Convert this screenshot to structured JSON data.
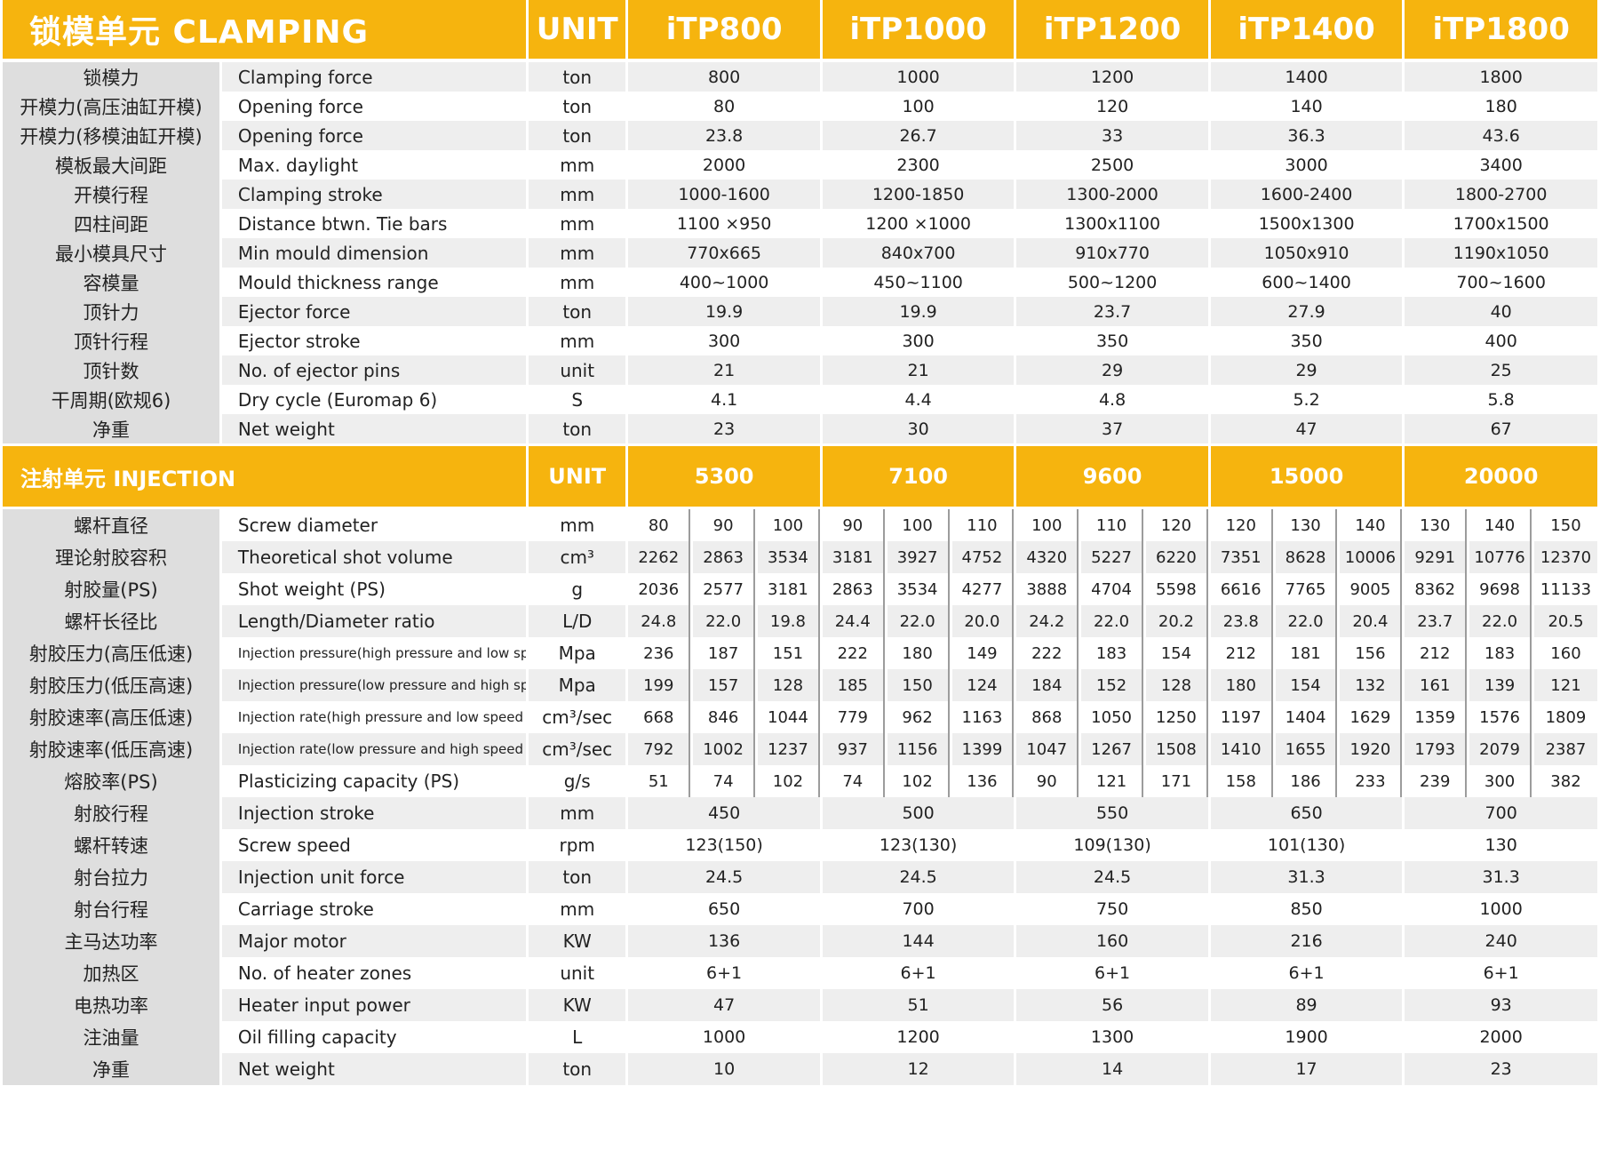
{
  "clamping": {
    "title": "锁模单元 CLAMPING",
    "unit_header": "UNIT",
    "models": [
      "iTP800",
      "iTP1000",
      "iTP1200",
      "iTP1400",
      "iTP1800"
    ],
    "rows": [
      {
        "zh": "锁模力",
        "en": "Clamping force",
        "unit": "ton",
        "values": [
          "800",
          "1000",
          "1200",
          "1400",
          "1800"
        ]
      },
      {
        "zh": "开模力(高压油缸开模)",
        "en": "Opening force",
        "unit": "ton",
        "values": [
          "80",
          "100",
          "120",
          "140",
          "180"
        ]
      },
      {
        "zh": "开模力(移模油缸开模)",
        "en": "Opening force",
        "unit": "ton",
        "values": [
          "23.8",
          "26.7",
          "33",
          "36.3",
          "43.6"
        ]
      },
      {
        "zh": "模板最大间距",
        "en": "Max. daylight",
        "unit": "mm",
        "values": [
          "2000",
          "2300",
          "2500",
          "3000",
          "3400"
        ]
      },
      {
        "zh": "开模行程",
        "en": "Clamping stroke",
        "unit": "mm",
        "values": [
          "1000-1600",
          "1200-1850",
          "1300-2000",
          "1600-2400",
          "1800-2700"
        ]
      },
      {
        "zh": "四柱间距",
        "en": "Distance btwn. Tie bars",
        "unit": "mm",
        "values": [
          "1100 ×950",
          "1200 ×1000",
          "1300x1100",
          "1500x1300",
          "1700x1500"
        ]
      },
      {
        "zh": "最小模具尺寸",
        "en": "Min mould dimension",
        "unit": "mm",
        "values": [
          "770x665",
          "840x700",
          "910x770",
          "1050x910",
          "1190x1050"
        ]
      },
      {
        "zh": "容模量",
        "en": "Mould thickness range",
        "unit": "mm",
        "values": [
          "400~1000",
          "450~1100",
          "500~1200",
          "600~1400",
          "700~1600"
        ]
      },
      {
        "zh": "顶针力",
        "en": "Ejector force",
        "unit": "ton",
        "values": [
          "19.9",
          "19.9",
          "23.7",
          "27.9",
          "40"
        ]
      },
      {
        "zh": "顶针行程",
        "en": "Ejector stroke",
        "unit": "mm",
        "values": [
          "300",
          "300",
          "350",
          "350",
          "400"
        ]
      },
      {
        "zh": "顶针数",
        "en": "No. of ejector pins",
        "unit": "unit",
        "values": [
          "21",
          "21",
          "29",
          "29",
          "25"
        ]
      },
      {
        "zh": "干周期(欧规6)",
        "en": "Dry cycle (Euromap 6)",
        "unit": "S",
        "values": [
          "4.1",
          "4.4",
          "4.8",
          "5.2",
          "5.8"
        ]
      },
      {
        "zh": "净重",
        "en": "Net weight",
        "unit": "ton",
        "values": [
          "23",
          "30",
          "37",
          "47",
          "67"
        ]
      }
    ]
  },
  "injection": {
    "title": "注射单元 INJECTION",
    "unit_header": "UNIT",
    "groups": [
      "5300",
      "7100",
      "9600",
      "15000",
      "20000"
    ],
    "sub_rows": [
      {
        "zh": "螺杆直径",
        "en": "Screw diameter",
        "unit": "mm",
        "values": [
          "80",
          "90",
          "100",
          "90",
          "100",
          "110",
          "100",
          "110",
          "120",
          "120",
          "130",
          "140",
          "130",
          "140",
          "150"
        ]
      },
      {
        "zh": "理论射胶容积",
        "en": "Theoretical shot volume",
        "unit": "cm³",
        "values": [
          "2262",
          "2863",
          "3534",
          "3181",
          "3927",
          "4752",
          "4320",
          "5227",
          "6220",
          "7351",
          "8628",
          "10006",
          "9291",
          "10776",
          "12370"
        ]
      },
      {
        "zh": "射胶量(PS)",
        "en": "Shot weight (PS)",
        "unit": "g",
        "values": [
          "2036",
          "2577",
          "3181",
          "2863",
          "3534",
          "4277",
          "3888",
          "4704",
          "5598",
          "6616",
          "7765",
          "9005",
          "8362",
          "9698",
          "11133"
        ]
      },
      {
        "zh": "螺杆长径比",
        "en": "Length/Diameter ratio",
        "unit": "L/D",
        "values": [
          "24.8",
          "22.0",
          "19.8",
          "24.4",
          "22.0",
          "20.0",
          "24.2",
          "22.0",
          "20.2",
          "23.8",
          "22.0",
          "20.4",
          "23.7",
          "22.0",
          "20.5"
        ]
      },
      {
        "zh": "射胶压力(高压低速)",
        "en": "Injection pressure(high pressure and low speed )",
        "unit": "Mpa",
        "small": true,
        "values": [
          "236",
          "187",
          "151",
          "222",
          "180",
          "149",
          "222",
          "183",
          "154",
          "212",
          "181",
          "156",
          "212",
          "183",
          "160"
        ]
      },
      {
        "zh": "射胶压力(低压高速)",
        "en": "Injection pressure(low pressure and high speed )",
        "unit": "Mpa",
        "small": true,
        "values": [
          "199",
          "157",
          "128",
          "185",
          "150",
          "124",
          "184",
          "152",
          "128",
          "180",
          "154",
          "132",
          "161",
          "139",
          "121"
        ]
      },
      {
        "zh": "射胶速率(高压低速)",
        "en": "Injection rate(high pressure and low speed )",
        "unit": "cm³/sec",
        "small": true,
        "values": [
          "668",
          "846",
          "1044",
          "779",
          "962",
          "1163",
          "868",
          "1050",
          "1250",
          "1197",
          "1404",
          "1629",
          "1359",
          "1576",
          "1809"
        ]
      },
      {
        "zh": "射胶速率(低压高速)",
        "en": "Injection rate(low pressure and high speed )",
        "unit": "cm³/sec",
        "small": true,
        "values": [
          "792",
          "1002",
          "1237",
          "937",
          "1156",
          "1399",
          "1047",
          "1267",
          "1508",
          "1410",
          "1655",
          "1920",
          "1793",
          "2079",
          "2387"
        ]
      },
      {
        "zh": "熔胶率(PS)",
        "en": "Plasticizing capacity (PS)",
        "unit": "g/s",
        "values": [
          "51",
          "74",
          "102",
          "74",
          "102",
          "136",
          "90",
          "121",
          "171",
          "158",
          "186",
          "233",
          "239",
          "300",
          "382"
        ]
      }
    ],
    "group_rows": [
      {
        "zh": "射胶行程",
        "en": "Injection stroke",
        "unit": "mm",
        "values": [
          "450",
          "500",
          "550",
          "650",
          "700"
        ]
      },
      {
        "zh": "螺杆转速",
        "en": "Screw speed",
        "unit": "rpm",
        "values": [
          "123(150)",
          "123(130)",
          "109(130)",
          "101(130)",
          "130"
        ]
      },
      {
        "zh": "射台拉力",
        "en": "Injection unit force",
        "unit": "ton",
        "values": [
          "24.5",
          "24.5",
          "24.5",
          "31.3",
          "31.3"
        ]
      },
      {
        "zh": "射台行程",
        "en": "Carriage stroke",
        "unit": "mm",
        "values": [
          "650",
          "700",
          "750",
          "850",
          "1000"
        ]
      },
      {
        "zh": "主马达功率",
        "en": "Major motor",
        "unit": "KW",
        "values": [
          "136",
          "144",
          "160",
          "216",
          "240"
        ]
      },
      {
        "zh": "加热区",
        "en": "No. of heater zones",
        "unit": "unit",
        "values": [
          "6+1",
          "6+1",
          "6+1",
          "6+1",
          "6+1"
        ]
      },
      {
        "zh": "电热功率",
        "en": "Heater input power",
        "unit": "KW",
        "values": [
          "47",
          "51",
          "56",
          "89",
          "93"
        ]
      },
      {
        "zh": "注油量",
        "en": "Oil filling capacity",
        "unit": "L",
        "values": [
          "1000",
          "1200",
          "1300",
          "1900",
          "2000"
        ]
      },
      {
        "zh": "净重",
        "en": "Net weight",
        "unit": "ton",
        "values": [
          "10",
          "12",
          "14",
          "17",
          "23"
        ]
      }
    ]
  }
}
